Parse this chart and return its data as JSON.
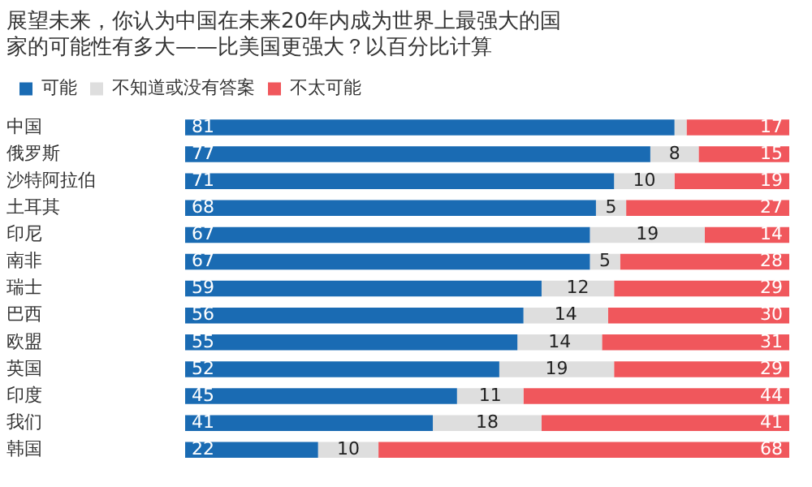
{
  "chart_data": {
    "type": "bar",
    "orientation": "horizontal",
    "stacked": true,
    "title": [
      "展望未来，你认为中国在未来20年内成为世界上最强大的国",
      "家的可能性有多大——比美国更强大？以百分比计算"
    ],
    "categories": [
      "中国",
      "俄罗斯",
      "沙特阿拉伯",
      "土耳其",
      "印尼",
      "南非",
      "瑞士",
      "巴西",
      "欧盟",
      "英国",
      "印度",
      "我们",
      "韩国"
    ],
    "series": [
      {
        "name": "可能",
        "color": "#1a6bb3",
        "values": [
          81,
          77,
          71,
          68,
          67,
          67,
          59,
          56,
          55,
          52,
          45,
          41,
          22
        ],
        "value_labels": [
          "81",
          "77",
          "71",
          "68",
          "67",
          "67",
          "59",
          "56",
          "55",
          "52",
          "45",
          "41",
          "22"
        ]
      },
      {
        "name": "不知道或没有答案",
        "color": "#dedede",
        "values": [
          2,
          8,
          10,
          5,
          19,
          5,
          12,
          14,
          14,
          19,
          11,
          18,
          10
        ],
        "value_labels": [
          null,
          "8",
          "10",
          "5",
          "19",
          "5",
          "12",
          "14",
          "14",
          "19",
          "11",
          "18",
          "10"
        ]
      },
      {
        "name": "不太可能",
        "color": "#f0575c",
        "values": [
          17,
          15,
          19,
          27,
          14,
          28,
          29,
          30,
          31,
          29,
          44,
          41,
          68
        ],
        "value_labels": [
          "17",
          "15",
          "19",
          "27",
          "14",
          "28",
          "29",
          "30",
          "31",
          "29",
          "44",
          "41",
          "68"
        ]
      }
    ],
    "xlim": [
      0,
      100
    ],
    "tick_labels": "y",
    "grid": false,
    "legend": "top left"
  }
}
